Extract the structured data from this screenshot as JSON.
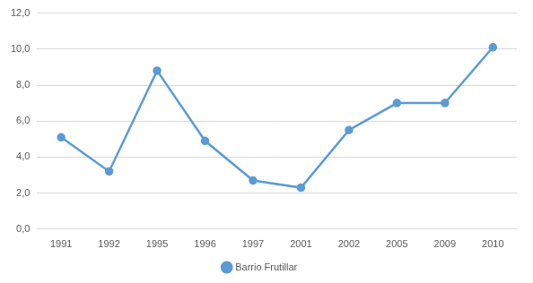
{
  "chart_data": {
    "type": "line",
    "categories": [
      "1991",
      "1992",
      "1995",
      "1996",
      "1997",
      "2001",
      "2002",
      "2005",
      "2009",
      "2010"
    ],
    "series": [
      {
        "name": "Barrio Frutillar",
        "color": "#5b9bd5",
        "marker": "circle",
        "values": [
          5.1,
          3.2,
          8.8,
          4.9,
          2.7,
          2.3,
          5.5,
          7.0,
          7.0,
          10.1
        ]
      }
    ],
    "ylim": [
      0,
      12
    ],
    "yticks": [
      {
        "value": 0,
        "label": "0,0"
      },
      {
        "value": 2,
        "label": "2,0"
      },
      {
        "value": 4,
        "label": "4,0"
      },
      {
        "value": 6,
        "label": "6,0"
      },
      {
        "value": 8,
        "label": "8,0"
      },
      {
        "value": 10,
        "label": "10,0"
      },
      {
        "value": 12,
        "label": "12,0"
      }
    ],
    "grid": true,
    "legend": "bottom"
  }
}
